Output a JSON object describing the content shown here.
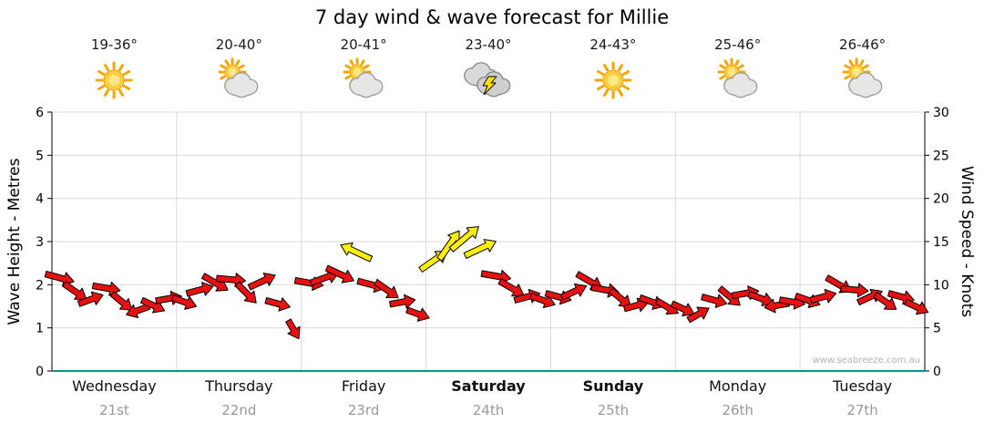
{
  "title": "7 day wind & wave forecast for Millie",
  "watermark": "www.seabreeze.com.au",
  "axes": {
    "left_label": "Wave Height - Metres",
    "right_label": "Wind Speed - Knots",
    "left_ticks": [
      0,
      1,
      2,
      3,
      4,
      5,
      6
    ],
    "right_ticks": [
      0,
      5,
      10,
      15,
      20,
      25,
      30
    ]
  },
  "days": [
    {
      "name": "Wednesday",
      "date": "21st",
      "temp": "19-36°",
      "icon": "sunny",
      "bold": false
    },
    {
      "name": "Thursday",
      "date": "22nd",
      "temp": "20-40°",
      "icon": "partly-cloudy",
      "bold": false
    },
    {
      "name": "Friday",
      "date": "23rd",
      "temp": "20-41°",
      "icon": "partly-cloudy",
      "bold": false
    },
    {
      "name": "Saturday",
      "date": "24th",
      "temp": "23-40°",
      "icon": "thunderstorm",
      "bold": true
    },
    {
      "name": "Sunday",
      "date": "25th",
      "temp": "24-43°",
      "icon": "sunny",
      "bold": true
    },
    {
      "name": "Monday",
      "date": "26th",
      "temp": "25-46°",
      "icon": "partly-cloudy",
      "bold": false
    },
    {
      "name": "Tuesday",
      "date": "27th",
      "temp": "26-46°",
      "icon": "partly-cloudy",
      "bold": false
    }
  ],
  "colors": {
    "grid": "#d9d9d9",
    "axis": "#000000",
    "bottom_axis": "#009696",
    "date_text": "#999999",
    "watermark_text": "#b4b4b4"
  },
  "chart_data": {
    "type": "scatter",
    "subtype": "wind-direction-arrows",
    "title": "7 day wind & wave forecast for Millie",
    "x_categories": [
      "Wednesday 21st",
      "Thursday 22nd",
      "Friday 23rd",
      "Saturday 24th",
      "Sunday 25th",
      "Monday 26th",
      "Tuesday 27th"
    ],
    "points_per_day": 8,
    "ylabel_left": "Wave Height - Metres",
    "ylim_left": [
      0,
      6
    ],
    "yticks_left": [
      0,
      1,
      2,
      3,
      4,
      5,
      6
    ],
    "ylabel_right": "Wind Speed - Knots",
    "ylim_right": [
      0,
      30
    ],
    "yticks_right": [
      0,
      5,
      10,
      15,
      20,
      25,
      30
    ],
    "grid": true,
    "legend": "none",
    "arrow_colors": {
      "normal": "#e81111",
      "strong": "#ffee00",
      "outline": "#000000",
      "strong_threshold_knots": 12.5
    },
    "knots": [
      10.8,
      9.2,
      8.3,
      9.6,
      8.0,
      7.0,
      7.6,
      8.4,
      8.0,
      9.4,
      10.2,
      10.6,
      9.0,
      10.4,
      7.8,
      4.8,
      10.2,
      10.8,
      11.2,
      13.8,
      10.0,
      9.4,
      8.0,
      6.6,
      12.8,
      14.6,
      15.4,
      14.2,
      11.0,
      9.6,
      8.6,
      8.2,
      8.6,
      9.2,
      10.4,
      9.4,
      8.4,
      7.6,
      8.0,
      7.4,
      7.2,
      6.6,
      8.2,
      8.6,
      9.0,
      8.4,
      7.6,
      8.0,
      8.2,
      8.6,
      10.0,
      9.4,
      8.6,
      8.0,
      8.6,
      7.4
    ],
    "dir_deg": [
      15,
      35,
      -20,
      10,
      40,
      160,
      25,
      -10,
      20,
      -15,
      30,
      5,
      45,
      -25,
      15,
      60,
      10,
      -20,
      25,
      205,
      15,
      35,
      -10,
      20,
      -35,
      -55,
      -40,
      -25,
      10,
      30,
      -15,
      20,
      15,
      -25,
      30,
      10,
      40,
      -15,
      20,
      30,
      25,
      -30,
      15,
      40,
      -10,
      20,
      170,
      10,
      20,
      -15,
      30,
      5,
      -25,
      35,
      15,
      25
    ]
  }
}
